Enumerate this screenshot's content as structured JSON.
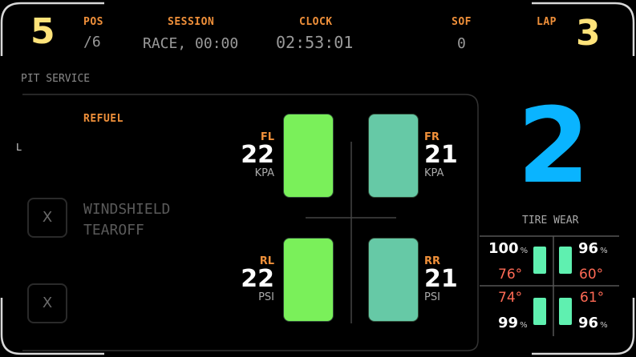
{
  "header": {
    "position_big": "5",
    "pos_label": "POS",
    "pos_value": "/6",
    "session_label": "SESSION",
    "session_value": "RACE, 00:00",
    "clock_label": "CLOCK",
    "clock_value": "02:53:01",
    "sof_label": "SOF",
    "sof_value": "0",
    "lap_label": "LAP",
    "lap_big": "3"
  },
  "pit": {
    "title": "PIT SERVICE",
    "refuel_label": "REFUEL",
    "side_marker": "L",
    "windshield_line1": "WINDSHIELD",
    "windshield_line2": "TEAROFF",
    "toggle1_icon": "x-icon",
    "toggle2_icon": "x-icon",
    "toggle_glyph": "X"
  },
  "tires": {
    "fl": {
      "label": "FL",
      "pressure": "22",
      "unit": "KPA"
    },
    "fr": {
      "label": "FR",
      "pressure": "21",
      "unit": "KPA"
    },
    "rl": {
      "label": "RL",
      "pressure": "22",
      "unit": "PSI"
    },
    "rr": {
      "label": "RR",
      "pressure": "21",
      "unit": "PSI"
    },
    "colors": {
      "front_left": "#7af05a",
      "front_right": "#66c9a6",
      "rear_left": "#7af05a",
      "rear_right": "#66c9a6"
    }
  },
  "gear": {
    "value": "2",
    "color": "#0ab4ff"
  },
  "wear": {
    "title": "TIRE WEAR",
    "fl_pct": "100",
    "fr_pct": "96",
    "rl_pct": "99",
    "rr_pct": "96",
    "pct_unit": "%",
    "fl_temp": "76°",
    "fr_temp": "60°",
    "rl_temp": "74°",
    "rr_temp": "61°"
  }
}
